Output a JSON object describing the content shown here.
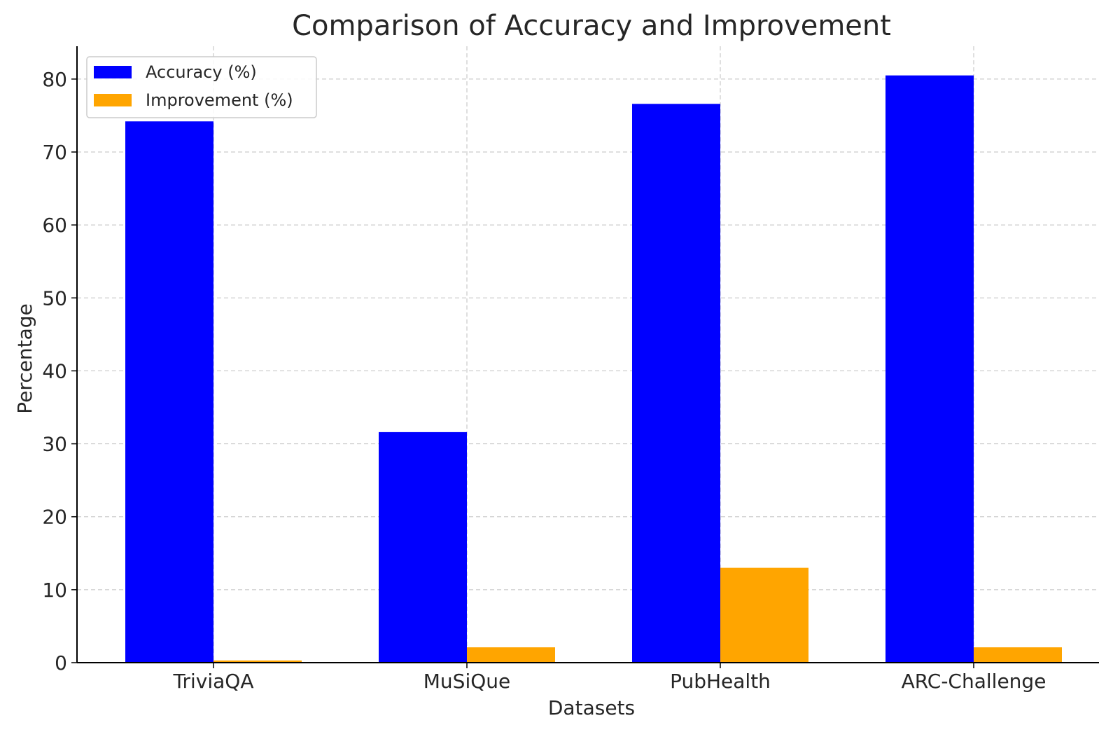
{
  "chart_data": {
    "type": "bar",
    "title": "Comparison of Accuracy and Improvement",
    "xlabel": "Datasets",
    "ylabel": "Percentage",
    "categories": [
      "TriviaQA",
      "MuSiQue",
      "PubHealth",
      "ARC-Challenge"
    ],
    "series": [
      {
        "name": "Accuracy (%)",
        "values": [
          74.2,
          31.6,
          76.6,
          80.5
        ],
        "color": "#0000ff"
      },
      {
        "name": "Improvement (%)",
        "values": [
          0.3,
          2.1,
          13.0,
          2.1
        ],
        "color": "#ffa500"
      }
    ],
    "ylim": [
      0,
      84.5
    ],
    "yticks": [
      0,
      10,
      20,
      30,
      40,
      50,
      60,
      70,
      80
    ],
    "grid": true,
    "legend_position": "top-left"
  }
}
